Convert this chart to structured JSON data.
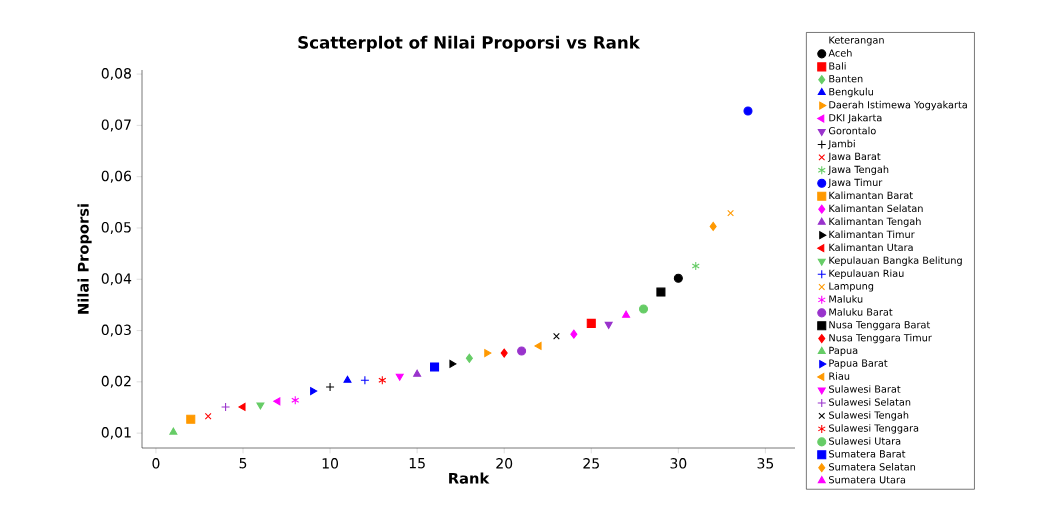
{
  "chart_data": {
    "type": "scatter",
    "title": "Scatterplot of Nilai Proporsi vs Rank",
    "xlabel": "Rank",
    "ylabel": "Nilai Proporsi",
    "legend_title": "Keterangan",
    "legend": "right",
    "xlim": [
      -0.8,
      36.7
    ],
    "ylim": [
      0.0071,
      0.0808
    ],
    "xticks": [
      0,
      5,
      10,
      15,
      20,
      25,
      30,
      35
    ],
    "yticks": [
      {
        "value": 0.01,
        "label": "0,01"
      },
      {
        "value": 0.02,
        "label": "0,02"
      },
      {
        "value": 0.03,
        "label": "0,03"
      },
      {
        "value": 0.04,
        "label": "0,04"
      },
      {
        "value": 0.05,
        "label": "0,05"
      },
      {
        "value": 0.06,
        "label": "0,06"
      },
      {
        "value": 0.07,
        "label": "0,07"
      },
      {
        "value": 0.08,
        "label": "0,08"
      }
    ],
    "series": [
      {
        "name": "Aceh",
        "marker": "circle",
        "color": "#000000",
        "x": [
          30
        ],
        "values": [
          0.0402
        ]
      },
      {
        "name": "Bali",
        "marker": "square",
        "color": "#ff0000",
        "x": [
          25
        ],
        "values": [
          0.0314
        ]
      },
      {
        "name": "Banten",
        "marker": "diamond",
        "color": "#66cc66",
        "x": [
          18
        ],
        "values": [
          0.0246
        ]
      },
      {
        "name": "Bengkulu",
        "marker": "triangle",
        "color": "#0000ff",
        "x": [
          11
        ],
        "values": [
          0.0203
        ]
      },
      {
        "name": "Daerah Istimewa Yogyakarta",
        "marker": "triangle-right",
        "color": "#ff9900",
        "x": [
          19
        ],
        "values": [
          0.0256
        ]
      },
      {
        "name": "DKI Jakarta",
        "marker": "triangle-left",
        "color": "#ff00ff",
        "x": [
          7
        ],
        "values": [
          0.0162
        ]
      },
      {
        "name": "Gorontalo",
        "marker": "triangle-down",
        "color": "#9933cc",
        "x": [
          26
        ],
        "values": [
          0.0312
        ]
      },
      {
        "name": "Jambi",
        "marker": "plus",
        "color": "#000000",
        "x": [
          10
        ],
        "values": [
          0.019
        ]
      },
      {
        "name": "Jawa Barat",
        "marker": "x",
        "color": "#ff0000",
        "x": [
          3
        ],
        "values": [
          0.0133
        ]
      },
      {
        "name": "Jawa Tengah",
        "marker": "cross",
        "color": "#66cc66",
        "x": [
          31
        ],
        "values": [
          0.0426
        ]
      },
      {
        "name": "Jawa Timur",
        "marker": "circle",
        "color": "#0000ff",
        "x": [
          34
        ],
        "values": [
          0.0728
        ]
      },
      {
        "name": "Kalimantan Barat",
        "marker": "square",
        "color": "#ff9900",
        "x": [
          2
        ],
        "values": [
          0.0127
        ]
      },
      {
        "name": "Kalimantan Selatan",
        "marker": "diamond",
        "color": "#ff00ff",
        "x": [
          24
        ],
        "values": [
          0.0293
        ]
      },
      {
        "name": "Kalimantan Tengah",
        "marker": "triangle",
        "color": "#9933cc",
        "x": [
          15
        ],
        "values": [
          0.0215
        ]
      },
      {
        "name": "Kalimantan Timur",
        "marker": "triangle-right",
        "color": "#000000",
        "x": [
          17
        ],
        "values": [
          0.0235
        ]
      },
      {
        "name": "Kalimantan Utara",
        "marker": "triangle-left",
        "color": "#ff0000",
        "x": [
          5
        ],
        "values": [
          0.0151
        ]
      },
      {
        "name": "Kepulauan Bangka Belitung",
        "marker": "triangle-down",
        "color": "#66cc66",
        "x": [
          6
        ],
        "values": [
          0.0155
        ]
      },
      {
        "name": "Kepulauan Riau",
        "marker": "plus",
        "color": "#0000ff",
        "x": [
          12
        ],
        "values": [
          0.0203
        ]
      },
      {
        "name": "Lampung",
        "marker": "x",
        "color": "#ff9900",
        "x": [
          33
        ],
        "values": [
          0.0529
        ]
      },
      {
        "name": "Maluku",
        "marker": "cross",
        "color": "#ff00ff",
        "x": [
          8
        ],
        "values": [
          0.0164
        ]
      },
      {
        "name": "Maluku Barat",
        "marker": "circle",
        "color": "#9933cc",
        "x": [
          21
        ],
        "values": [
          0.026
        ]
      },
      {
        "name": "Nusa Tenggara Barat",
        "marker": "square",
        "color": "#000000",
        "x": [
          29
        ],
        "values": [
          0.0375
        ]
      },
      {
        "name": "Nusa Tenggara Timur",
        "marker": "diamond",
        "color": "#ff0000",
        "x": [
          20
        ],
        "values": [
          0.0256
        ]
      },
      {
        "name": "Papua",
        "marker": "triangle",
        "color": "#66cc66",
        "x": [
          1
        ],
        "values": [
          0.0102
        ]
      },
      {
        "name": "Papua Barat",
        "marker": "triangle-right",
        "color": "#0000ff",
        "x": [
          9
        ],
        "values": [
          0.0182
        ]
      },
      {
        "name": "Riau",
        "marker": "triangle-left",
        "color": "#ff9900",
        "x": [
          22
        ],
        "values": [
          0.027
        ]
      },
      {
        "name": "Sulawesi Barat",
        "marker": "triangle-down",
        "color": "#ff00ff",
        "x": [
          14
        ],
        "values": [
          0.0211
        ]
      },
      {
        "name": "Sulawesi Selatan",
        "marker": "plus",
        "color": "#9933cc",
        "x": [
          4
        ],
        "values": [
          0.0151
        ]
      },
      {
        "name": "Sulawesi Tengah",
        "marker": "x",
        "color": "#000000",
        "x": [
          23
        ],
        "values": [
          0.0289
        ]
      },
      {
        "name": "Sulawesi Tenggara",
        "marker": "cross",
        "color": "#ff0000",
        "x": [
          13
        ],
        "values": [
          0.0203
        ]
      },
      {
        "name": "Sulawesi Utara",
        "marker": "circle",
        "color": "#66cc66",
        "x": [
          28
        ],
        "values": [
          0.0342
        ]
      },
      {
        "name": "Sumatera Barat",
        "marker": "square",
        "color": "#0000ff",
        "x": [
          16
        ],
        "values": [
          0.0229
        ]
      },
      {
        "name": "Sumatera Selatan",
        "marker": "diamond",
        "color": "#ff9900",
        "x": [
          32
        ],
        "values": [
          0.0503
        ]
      },
      {
        "name": "Sumatera Utara",
        "marker": "triangle",
        "color": "#ff00ff",
        "x": [
          27
        ],
        "values": [
          0.033
        ]
      }
    ]
  }
}
